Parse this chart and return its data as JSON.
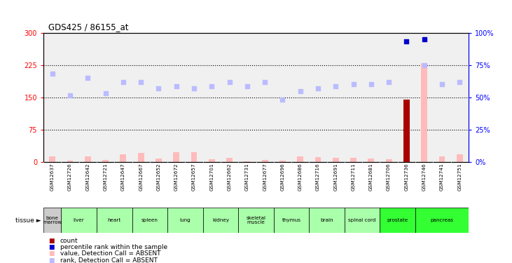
{
  "title": "GDS425 / 86155_at",
  "samples": [
    "GSM12637",
    "GSM12726",
    "GSM12642",
    "GSM12721",
    "GSM12647",
    "GSM12667",
    "GSM12652",
    "GSM12672",
    "GSM12657",
    "GSM12701",
    "GSM12662",
    "GSM12731",
    "GSM12677",
    "GSM12696",
    "GSM12686",
    "GSM12716",
    "GSM12691",
    "GSM12711",
    "GSM12681",
    "GSM12706",
    "GSM12736",
    "GSM12746",
    "GSM12741",
    "GSM12751"
  ],
  "tissues": [
    {
      "name": "bone\nmarrow",
      "start": 0,
      "end": 1,
      "color": "#cccccc"
    },
    {
      "name": "liver",
      "start": 1,
      "end": 3,
      "color": "#aaffaa"
    },
    {
      "name": "heart",
      "start": 3,
      "end": 5,
      "color": "#aaffaa"
    },
    {
      "name": "spleen",
      "start": 5,
      "end": 7,
      "color": "#aaffaa"
    },
    {
      "name": "lung",
      "start": 7,
      "end": 9,
      "color": "#aaffaa"
    },
    {
      "name": "kidney",
      "start": 9,
      "end": 11,
      "color": "#aaffaa"
    },
    {
      "name": "skeletal\nmuscle",
      "start": 11,
      "end": 13,
      "color": "#aaffaa"
    },
    {
      "name": "thymus",
      "start": 13,
      "end": 15,
      "color": "#aaffaa"
    },
    {
      "name": "brain",
      "start": 15,
      "end": 17,
      "color": "#aaffaa"
    },
    {
      "name": "spinal cord",
      "start": 17,
      "end": 19,
      "color": "#aaffaa"
    },
    {
      "name": "prostate",
      "start": 19,
      "end": 21,
      "color": "#33ff33"
    },
    {
      "name": "pancreas",
      "start": 21,
      "end": 24,
      "color": "#33ff33"
    }
  ],
  "value_absent": [
    13,
    3,
    12,
    5,
    18,
    20,
    8,
    22,
    22,
    6,
    10,
    1,
    5,
    3,
    13,
    11,
    9,
    10,
    7,
    6,
    145,
    230,
    12,
    18
  ],
  "rank_absent": [
    205,
    155,
    195,
    160,
    185,
    185,
    170,
    175,
    170,
    175,
    185,
    175,
    185,
    145,
    165,
    170,
    175,
    180,
    180,
    185,
    0,
    225,
    180,
    185
  ],
  "count_values": [
    0,
    0,
    0,
    0,
    0,
    0,
    0,
    0,
    0,
    0,
    0,
    0,
    0,
    0,
    0,
    0,
    0,
    0,
    0,
    0,
    145,
    0,
    0,
    0
  ],
  "percentile_present": [
    0,
    0,
    0,
    0,
    0,
    0,
    0,
    0,
    0,
    0,
    0,
    0,
    0,
    0,
    0,
    0,
    0,
    0,
    0,
    0,
    280,
    285,
    0,
    0
  ],
  "ylim_left": [
    0,
    300
  ],
  "ylim_right": [
    0,
    100
  ],
  "yticks_left": [
    0,
    75,
    150,
    225,
    300
  ],
  "yticks_right": [
    0,
    25,
    50,
    75,
    100
  ],
  "color_value_absent": "#ffbbbb",
  "color_rank_absent": "#bbbbff",
  "color_count": "#aa0000",
  "color_percentile": "#0000cc",
  "bg_color": "#ffffff",
  "plot_bg_color": "#f0f0f0",
  "sample_row_color": "#cccccc",
  "bar_width": 0.35
}
